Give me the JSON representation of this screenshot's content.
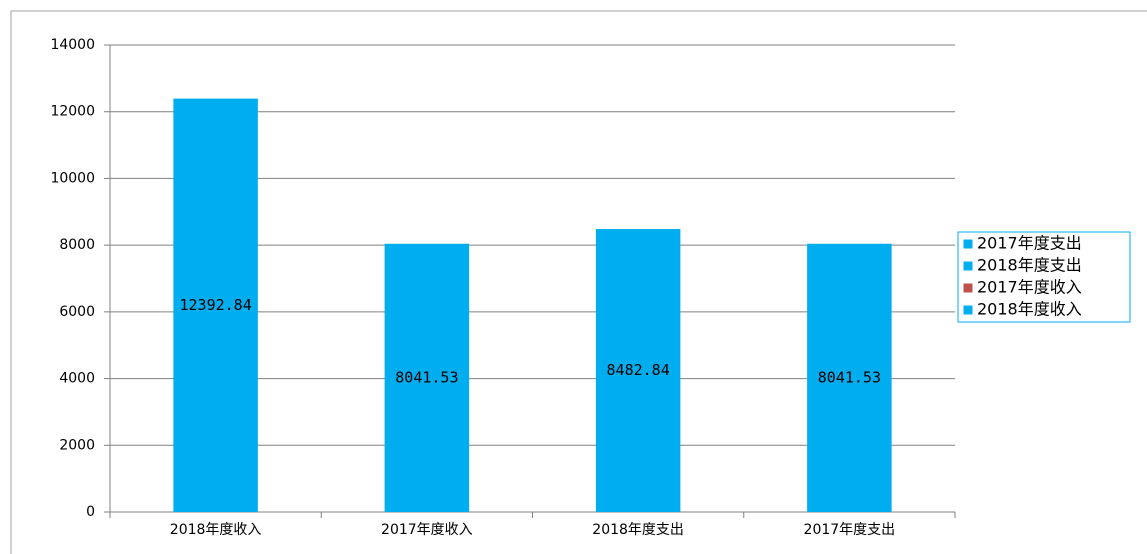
{
  "chart_data": {
    "type": "bar",
    "categories": [
      "2018年度收入",
      "2017年度收入",
      "2018年度支出",
      "2017年度支出"
    ],
    "values": [
      12392.84,
      8041.53,
      8482.84,
      8041.53
    ],
    "color": "#00aeef",
    "ylim": [
      0,
      14000
    ],
    "yticks": [
      0,
      2000,
      4000,
      6000,
      8000,
      10000,
      12000,
      14000
    ],
    "grid": true,
    "legend": [
      {
        "name": "2017年度支出",
        "color": "#00aeef"
      },
      {
        "name": "2018年度支出",
        "color": "#00aeef"
      },
      {
        "name": "2017年度收入",
        "color": "#c0504d"
      },
      {
        "name": "2018年度收入",
        "color": "#00aeef"
      }
    ],
    "legend_position": "right"
  }
}
